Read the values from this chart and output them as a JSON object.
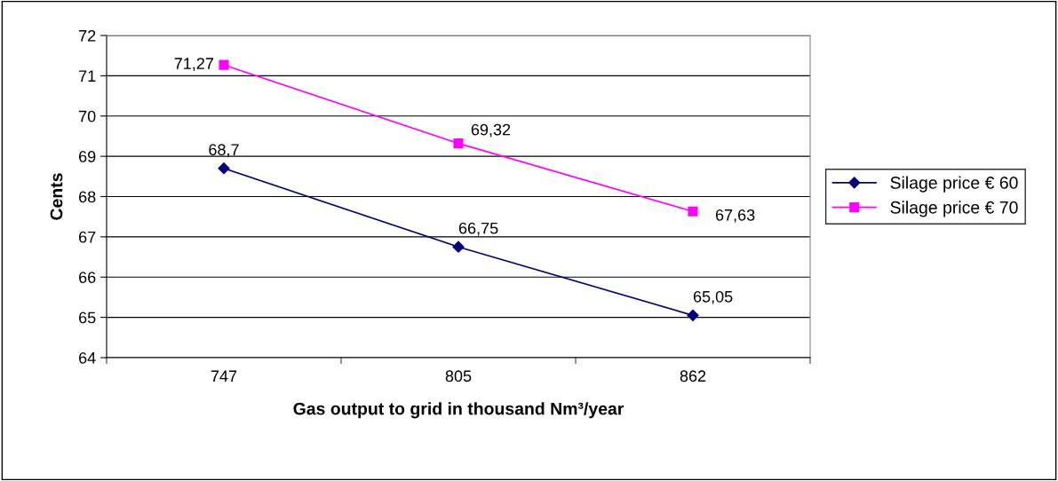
{
  "chart_data": {
    "type": "line",
    "xlabel": "Gas output to grid in thousand Nm³/year",
    "ylabel": "Cents",
    "categories": [
      "747",
      "805",
      "862"
    ],
    "series": [
      {
        "name": "Silage price € 60",
        "color": "#000080",
        "marker": "diamond",
        "values": [
          68.7,
          66.75,
          65.05
        ],
        "value_labels": [
          "68,7",
          "66,75",
          "65,05"
        ]
      },
      {
        "name": "Silage price € 70",
        "color": "#ff00ff",
        "marker": "square",
        "values": [
          71.27,
          69.32,
          67.63
        ],
        "value_labels": [
          "71,27",
          "69,32",
          "67,63"
        ]
      }
    ],
    "ylim": [
      64,
      72
    ],
    "yticks": [
      64,
      65,
      66,
      67,
      68,
      69,
      70,
      71,
      72
    ],
    "grid": "y",
    "legend": "right",
    "line_style": "solid"
  }
}
